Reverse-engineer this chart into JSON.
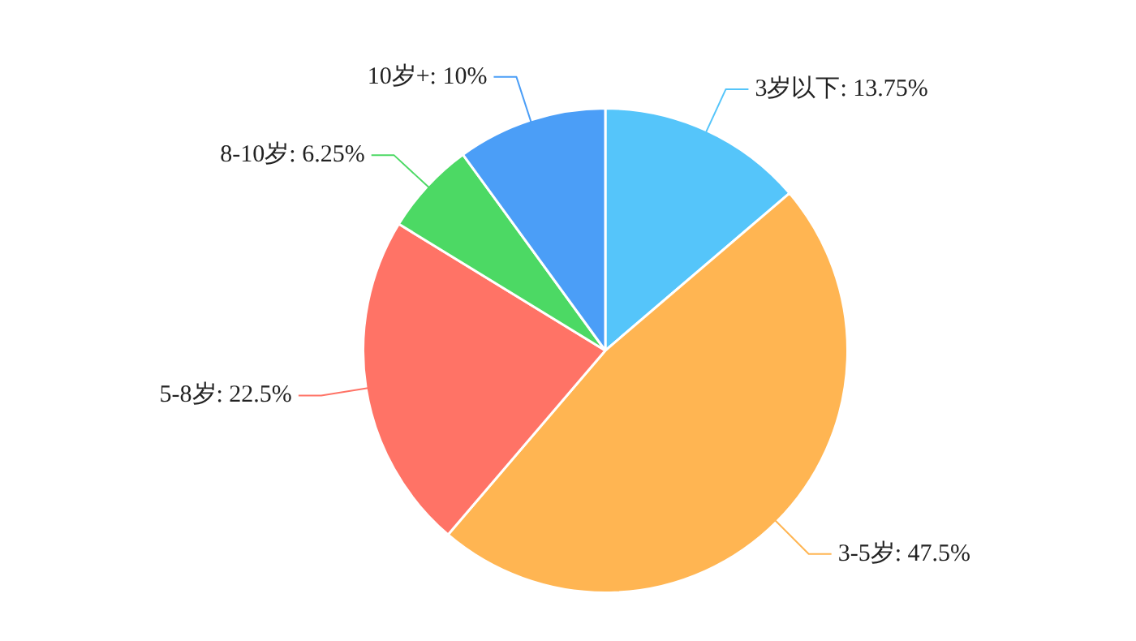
{
  "chart_data": {
    "type": "pie",
    "categories": [
      "3岁以下",
      "3-5岁",
      "5-8岁",
      "8-10岁",
      "10岁+"
    ],
    "values": [
      13.75,
      47.5,
      22.5,
      6.25,
      10
    ],
    "value_labels": [
      "13.75%",
      "47.5%",
      "22.5%",
      "6.25%",
      "10%"
    ],
    "colors": [
      "#55c5fa",
      "#ffb552",
      "#ff7366",
      "#4cd964",
      "#4b9ef7"
    ],
    "legend": false
  }
}
